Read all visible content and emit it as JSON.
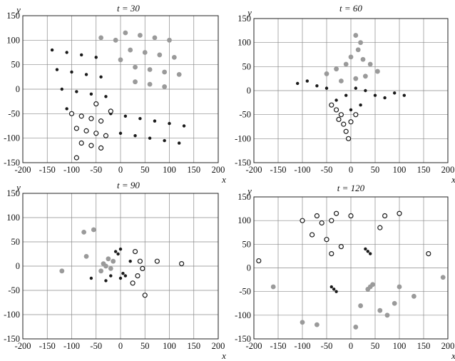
{
  "figure": {
    "panels": [
      {
        "id": "t30",
        "title": "t = 30",
        "xlabel": "x",
        "ylabel": "y",
        "xlim": [
          -200,
          200
        ],
        "ylim": [
          -150,
          150
        ],
        "xticks": [
          -200,
          -150,
          -100,
          -50,
          0,
          50,
          100,
          150,
          200
        ],
        "yticks": [
          150,
          100,
          50,
          0,
          -50,
          -100,
          -150
        ],
        "grid": true
      },
      {
        "id": "t60",
        "title": "t = 60",
        "xlabel": "x",
        "ylabel": "y",
        "xlim": [
          -200,
          200
        ],
        "ylim": [
          -150,
          150
        ],
        "xticks": [
          -200,
          -150,
          -100,
          -50,
          0,
          50,
          100,
          150,
          200
        ],
        "yticks": [
          150,
          100,
          50,
          0,
          -50,
          -100,
          -150
        ],
        "grid": true
      },
      {
        "id": "t90",
        "title": "t = 90",
        "xlabel": "x",
        "ylabel": "y",
        "xlim": [
          -200,
          200
        ],
        "ylim": [
          -150,
          150
        ],
        "xticks": [
          -200,
          -150,
          -100,
          -50,
          0,
          50,
          100,
          150,
          200
        ],
        "yticks": [
          150,
          100,
          50,
          0,
          -50,
          -100,
          -150
        ],
        "grid": true
      },
      {
        "id": "t120",
        "title": "t = 120",
        "xlabel": "x",
        "ylabel": "y",
        "xlim": [
          -200,
          200
        ],
        "ylim": [
          -150,
          150
        ],
        "xticks": [
          -200,
          -150,
          -100,
          -50,
          0,
          50,
          100,
          150,
          200
        ],
        "yticks": [
          150,
          100,
          50,
          0,
          -50,
          -100,
          -150
        ],
        "grid": true
      }
    ]
  },
  "chart_data": [
    {
      "type": "scatter",
      "title": "t = 30",
      "xlabel": "x",
      "ylabel": "y",
      "xlim": [
        -200,
        200
      ],
      "ylim": [
        -150,
        150
      ],
      "grid": true,
      "colors": {
        "grey": "#9a9a9a",
        "black": "#1a1a1a",
        "open": "#1a1a1a"
      },
      "series": [
        {
          "marker": "grey-filled-dot",
          "color": "#9a9a9a",
          "points": [
            [
              10,
              115
            ],
            [
              40,
              110
            ],
            [
              70,
              105
            ],
            [
              100,
              100
            ],
            [
              20,
              80
            ],
            [
              50,
              75
            ],
            [
              80,
              70
            ],
            [
              110,
              65
            ],
            [
              30,
              45
            ],
            [
              60,
              40
            ],
            [
              90,
              35
            ],
            [
              120,
              30
            ],
            [
              -40,
              105
            ],
            [
              -10,
              100
            ],
            [
              0,
              60
            ],
            [
              30,
              15
            ],
            [
              60,
              10
            ],
            [
              90,
              5
            ]
          ]
        },
        {
          "marker": "black-small-dot",
          "color": "#1a1a1a",
          "points": [
            [
              -140,
              80
            ],
            [
              -110,
              75
            ],
            [
              -80,
              70
            ],
            [
              -50,
              65
            ],
            [
              -130,
              40
            ],
            [
              -100,
              35
            ],
            [
              -70,
              30
            ],
            [
              -40,
              25
            ],
            [
              -120,
              0
            ],
            [
              -90,
              -5
            ],
            [
              -60,
              -10
            ],
            [
              -30,
              -15
            ],
            [
              -110,
              -40
            ],
            [
              -20,
              -50
            ],
            [
              10,
              -55
            ],
            [
              40,
              -60
            ],
            [
              70,
              -65
            ],
            [
              100,
              -70
            ],
            [
              130,
              -75
            ],
            [
              0,
              -90
            ],
            [
              30,
              -95
            ],
            [
              60,
              -100
            ],
            [
              90,
              -105
            ],
            [
              120,
              -110
            ]
          ]
        },
        {
          "marker": "open-circle",
          "color": "#1a1a1a",
          "points": [
            [
              -100,
              -50
            ],
            [
              -80,
              -55
            ],
            [
              -60,
              -60
            ],
            [
              -40,
              -65
            ],
            [
              -90,
              -80
            ],
            [
              -70,
              -85
            ],
            [
              -50,
              -90
            ],
            [
              -30,
              -95
            ],
            [
              -80,
              -110
            ],
            [
              -60,
              -115
            ],
            [
              -40,
              -120
            ],
            [
              -90,
              -140
            ],
            [
              -20,
              -45
            ],
            [
              -50,
              -30
            ]
          ]
        }
      ]
    },
    {
      "type": "scatter",
      "title": "t = 60",
      "xlabel": "x",
      "ylabel": "y",
      "xlim": [
        -200,
        200
      ],
      "ylim": [
        -150,
        150
      ],
      "grid": true,
      "colors": {
        "grey": "#9a9a9a",
        "black": "#1a1a1a",
        "open": "#1a1a1a"
      },
      "series": [
        {
          "marker": "grey-filled-dot",
          "color": "#9a9a9a",
          "points": [
            [
              10,
              115
            ],
            [
              20,
              100
            ],
            [
              15,
              85
            ],
            [
              0,
              70
            ],
            [
              25,
              65
            ],
            [
              40,
              55
            ],
            [
              -10,
              55
            ],
            [
              -30,
              45
            ],
            [
              -50,
              35
            ],
            [
              55,
              40
            ],
            [
              30,
              30
            ],
            [
              10,
              25
            ],
            [
              -20,
              20
            ]
          ]
        },
        {
          "marker": "black-small-dot",
          "color": "#1a1a1a",
          "points": [
            [
              -110,
              15
            ],
            [
              -90,
              20
            ],
            [
              -70,
              10
            ],
            [
              -50,
              5
            ],
            [
              110,
              -10
            ],
            [
              90,
              -5
            ],
            [
              70,
              -15
            ],
            [
              50,
              -10
            ],
            [
              30,
              0
            ],
            [
              10,
              5
            ],
            [
              -10,
              -10
            ],
            [
              -30,
              -20
            ],
            [
              0,
              -40
            ],
            [
              20,
              -30
            ]
          ]
        },
        {
          "marker": "open-circle",
          "color": "#1a1a1a",
          "points": [
            [
              -20,
              -50
            ],
            [
              -15,
              -70
            ],
            [
              -10,
              -85
            ],
            [
              -5,
              -100
            ],
            [
              -25,
              -60
            ],
            [
              0,
              -65
            ],
            [
              10,
              -50
            ],
            [
              -30,
              -40
            ],
            [
              -40,
              -30
            ]
          ]
        }
      ]
    },
    {
      "type": "scatter",
      "title": "t = 90",
      "xlabel": "x",
      "ylabel": "y",
      "xlim": [
        -200,
        200
      ],
      "ylim": [
        -150,
        150
      ],
      "grid": true,
      "colors": {
        "grey": "#9a9a9a",
        "black": "#1a1a1a",
        "open": "#1a1a1a"
      },
      "series": [
        {
          "marker": "grey-filled-dot",
          "color": "#9a9a9a",
          "points": [
            [
              -75,
              70
            ],
            [
              -55,
              75
            ],
            [
              -25,
              15
            ],
            [
              -35,
              5
            ],
            [
              -20,
              -5
            ],
            [
              -40,
              -10
            ],
            [
              -30,
              0
            ],
            [
              -15,
              10
            ],
            [
              -120,
              -10
            ],
            [
              -70,
              20
            ]
          ]
        },
        {
          "marker": "black-small-dot",
          "color": "#1a1a1a",
          "points": [
            [
              -10,
              30
            ],
            [
              -5,
              25
            ],
            [
              0,
              35
            ],
            [
              5,
              -15
            ],
            [
              0,
              -25
            ],
            [
              10,
              -20
            ],
            [
              -20,
              -20
            ],
            [
              -30,
              -30
            ],
            [
              20,
              10
            ],
            [
              -60,
              -25
            ]
          ]
        },
        {
          "marker": "open-circle",
          "color": "#1a1a1a",
          "points": [
            [
              30,
              30
            ],
            [
              40,
              10
            ],
            [
              45,
              -5
            ],
            [
              35,
              -20
            ],
            [
              25,
              -35
            ],
            [
              50,
              -60
            ],
            [
              125,
              5
            ],
            [
              75,
              10
            ]
          ]
        }
      ]
    },
    {
      "type": "scatter",
      "title": "t = 120",
      "xlabel": "x",
      "ylabel": "y",
      "xlim": [
        -200,
        200
      ],
      "ylim": [
        -150,
        150
      ],
      "grid": true,
      "colors": {
        "grey": "#9a9a9a",
        "black": "#1a1a1a",
        "open": "#1a1a1a"
      },
      "series": [
        {
          "marker": "grey-filled-dot",
          "color": "#9a9a9a",
          "points": [
            [
              40,
              -40
            ],
            [
              35,
              -45
            ],
            [
              45,
              -35
            ],
            [
              -160,
              -40
            ],
            [
              -100,
              -115
            ],
            [
              -70,
              -120
            ],
            [
              10,
              -125
            ],
            [
              20,
              -80
            ],
            [
              60,
              -90
            ],
            [
              75,
              -100
            ],
            [
              90,
              -75
            ],
            [
              130,
              -60
            ],
            [
              190,
              -20
            ],
            [
              100,
              -40
            ]
          ]
        },
        {
          "marker": "black-small-dot",
          "color": "#1a1a1a",
          "points": [
            [
              -35,
              -45
            ],
            [
              -40,
              -40
            ],
            [
              -30,
              -50
            ],
            [
              35,
              35
            ],
            [
              40,
              30
            ],
            [
              30,
              40
            ]
          ]
        },
        {
          "marker": "open-circle",
          "color": "#1a1a1a",
          "points": [
            [
              -40,
              30
            ],
            [
              -100,
              100
            ],
            [
              -70,
              110
            ],
            [
              -30,
              115
            ],
            [
              -60,
              95
            ],
            [
              0,
              110
            ],
            [
              70,
              110
            ],
            [
              100,
              115
            ],
            [
              160,
              30
            ],
            [
              -190,
              15
            ],
            [
              -50,
              60
            ],
            [
              -80,
              70
            ],
            [
              -40,
              100
            ],
            [
              60,
              85
            ],
            [
              -20,
              45
            ]
          ]
        }
      ]
    }
  ]
}
